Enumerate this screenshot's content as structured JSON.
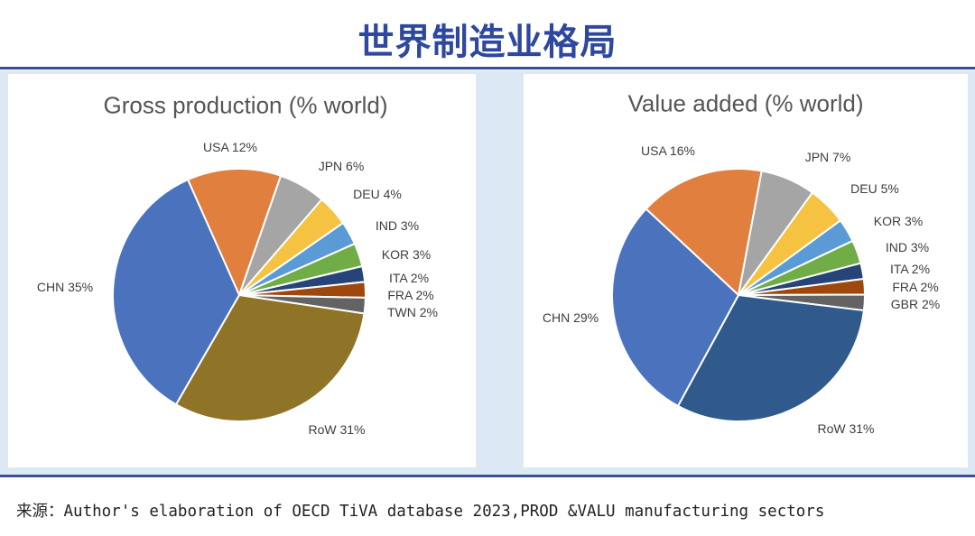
{
  "title": "世界制造业格局",
  "caption": "来源：Author's elaboration of OECD TiVA database 2023,PROD &VALU manufacturing sectors",
  "chart_data": [
    {
      "type": "pie",
      "title": "Gross production (% world)",
      "categories": [
        "USA",
        "JPN",
        "DEU",
        "IND",
        "KOR",
        "ITA",
        "FRA",
        "TWN",
        "RoW",
        "CHN"
      ],
      "values": [
        12,
        6,
        4,
        3,
        3,
        2,
        2,
        2,
        31,
        35
      ],
      "labels": [
        "USA 12%",
        "JPN 6%",
        "DEU 4%",
        "IND 3%",
        "KOR 3%",
        "ITA 2%",
        "FRA 2%",
        "TWN 2%",
        "RoW 31%",
        "CHN 35%"
      ],
      "colors": [
        "#e07f3e",
        "#a5a5a5",
        "#f5c242",
        "#5b9bd5",
        "#70ad47",
        "#264478",
        "#9e480e",
        "#636363",
        "#8f7326",
        "#4a72bd"
      ],
      "direction": "clockwise"
    },
    {
      "type": "pie",
      "title": "Value added (% world)",
      "categories": [
        "USA",
        "JPN",
        "DEU",
        "KOR",
        "IND",
        "ITA",
        "FRA",
        "GBR",
        "RoW",
        "CHN"
      ],
      "values": [
        16,
        7,
        5,
        3,
        3,
        2,
        2,
        2,
        31,
        29
      ],
      "labels": [
        "USA 16%",
        "JPN 7%",
        "DEU 5%",
        "KOR 3%",
        "IND 3%",
        "ITA 2%",
        "FRA 2%",
        "GBR 2%",
        "RoW 31%",
        "CHN 29%"
      ],
      "colors": [
        "#e07f3e",
        "#a5a5a5",
        "#f5c242",
        "#5b9bd5",
        "#70ad47",
        "#264478",
        "#9e480e",
        "#636363",
        "#305a8c",
        "#4a72bd"
      ],
      "direction": "clockwise"
    }
  ]
}
